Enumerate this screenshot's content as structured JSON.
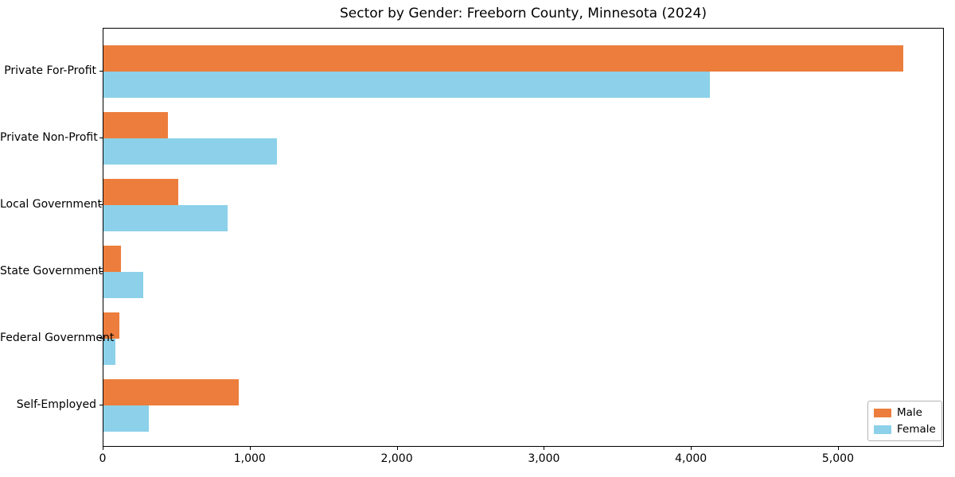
{
  "chart_data": {
    "type": "bar",
    "orientation": "horizontal",
    "title": "Sector by Gender: Freeborn County, Minnesota (2024)",
    "categories": [
      "Private For-Profit",
      "Private Non-Profit",
      "Local Government",
      "State Government",
      "Federal Government",
      "Self-Employed"
    ],
    "series": [
      {
        "name": "Male",
        "color": "#ec7d3c",
        "values": [
          5450,
          440,
          510,
          120,
          110,
          920
        ]
      },
      {
        "name": "Female",
        "color": "#8cd1e9",
        "values": [
          4130,
          1180,
          845,
          270,
          80,
          310
        ]
      }
    ],
    "xlim": [
      0,
      5720
    ],
    "xticks": [
      0,
      1000,
      2000,
      3000,
      4000,
      5000
    ],
    "xtick_labels": [
      "0",
      "1,000",
      "2,000",
      "3,000",
      "4,000",
      "5,000"
    ],
    "xlabel": "",
    "ylabel": "",
    "grid": false,
    "legend": {
      "position": "lower right",
      "entries": [
        "Male",
        "Female"
      ]
    }
  }
}
